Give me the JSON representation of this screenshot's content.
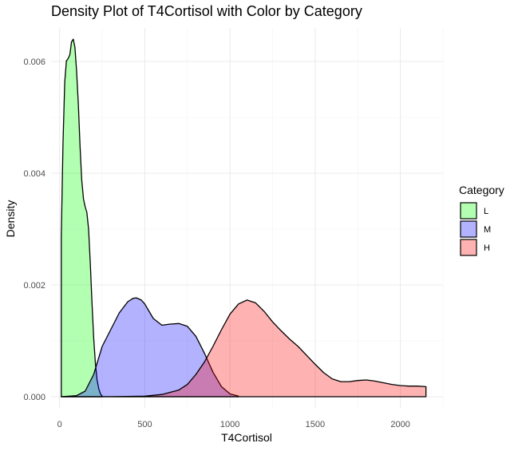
{
  "chart_data": {
    "type": "area",
    "title": "Density Plot of T4Cortisol with Color by Category",
    "xlabel": "T4Cortisol",
    "ylabel": "Density",
    "xlim": [
      -50,
      2250
    ],
    "ylim": [
      -0.0002,
      0.0066
    ],
    "x_ticks": [
      0,
      500,
      1000,
      1500,
      2000
    ],
    "y_ticks": [
      0.0,
      0.002,
      0.004,
      0.006
    ],
    "x_tick_labels": [
      "0",
      "500",
      "1000",
      "1500",
      "2000"
    ],
    "y_tick_labels": [
      "0.000",
      "0.002",
      "0.004",
      "0.006"
    ],
    "grid": true,
    "legend": {
      "title": "Category",
      "placement": "right"
    },
    "series": [
      {
        "name": "L",
        "color": "#00ff00",
        "fill_opacity": 0.3,
        "x": [
          10,
          20,
          30,
          40,
          50,
          60,
          70,
          80,
          90,
          100,
          110,
          120,
          130,
          140,
          150,
          160,
          170,
          180,
          190,
          200,
          210,
          220,
          230,
          240,
          250
        ],
        "y": [
          0.00287,
          0.00452,
          0.00563,
          0.00601,
          0.00605,
          0.00612,
          0.00635,
          0.0064,
          0.00625,
          0.00582,
          0.00522,
          0.00448,
          0.00388,
          0.00354,
          0.0034,
          0.0033,
          0.003,
          0.0024,
          0.0017,
          0.00105,
          0.0006,
          0.0003,
          0.00014,
          5e-05,
          1e-05
        ]
      },
      {
        "name": "M",
        "color": "#0000ff",
        "fill_opacity": 0.3,
        "x": [
          10,
          100,
          150,
          200,
          250,
          300,
          350,
          400,
          430,
          450,
          480,
          500,
          550,
          600,
          650,
          700,
          750,
          800,
          850,
          900,
          950,
          1000,
          1050
        ],
        "y": [
          0.0,
          2e-05,
          0.0001,
          0.0004,
          0.0009,
          0.0012,
          0.0015,
          0.0017,
          0.00176,
          0.00177,
          0.00173,
          0.00166,
          0.0014,
          0.00128,
          0.0013,
          0.00131,
          0.00126,
          0.00108,
          0.00078,
          0.00044,
          0.00018,
          5e-05,
          1e-05
        ]
      },
      {
        "name": "H",
        "color": "#ff0000",
        "fill_opacity": 0.3,
        "x": [
          10,
          300,
          500,
          600,
          700,
          750,
          800,
          850,
          900,
          950,
          1000,
          1050,
          1100,
          1150,
          1200,
          1250,
          1300,
          1350,
          1400,
          1450,
          1500,
          1550,
          1600,
          1650,
          1700,
          1750,
          1800,
          1850,
          1900,
          1950,
          2000,
          2050,
          2100,
          2150
        ],
        "y": [
          0.0,
          0.0,
          1e-05,
          4e-05,
          0.00012,
          0.00022,
          0.0004,
          0.00062,
          0.0009,
          0.0012,
          0.00148,
          0.00166,
          0.00173,
          0.00168,
          0.00153,
          0.00134,
          0.00118,
          0.00103,
          0.0009,
          0.00074,
          0.00058,
          0.00043,
          0.00032,
          0.00027,
          0.00027,
          0.00029,
          0.0003,
          0.00028,
          0.00025,
          0.00022,
          0.0002,
          0.00019,
          0.00019,
          0.00018
        ]
      }
    ]
  }
}
